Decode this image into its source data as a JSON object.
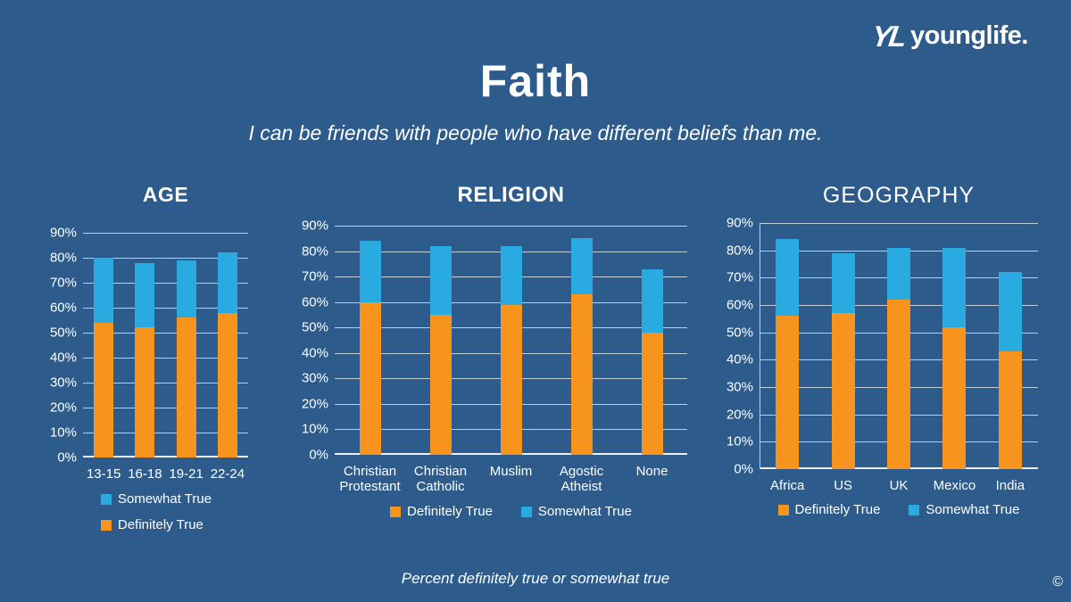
{
  "page": {
    "title": "Faith",
    "subtitle": "I can be friends with people who have different beliefs than me.",
    "footnote": "Percent definitely true or somewhat true",
    "copyright_symbol": "©"
  },
  "logo": {
    "mark": "YL",
    "text": "younglife."
  },
  "colors": {
    "background": "#2C5B8C",
    "definitely_true": "#F7941E",
    "somewhat_true": "#29ABE2",
    "gridline": "#C2CEDB",
    "text": "#FFFFFF"
  },
  "chart_data": [
    {
      "id": "age",
      "type": "bar",
      "stacked": true,
      "title": "AGE",
      "title_bold": true,
      "categories": [
        "13-15",
        "16-18",
        "19-21",
        "22-24"
      ],
      "series": [
        {
          "name": "Definitely True",
          "color_key": "definitely_true",
          "values": [
            54,
            52,
            56,
            58
          ]
        },
        {
          "name": "Somewhat True",
          "color_key": "somewhat_true",
          "values": [
            26,
            26,
            23,
            24
          ]
        }
      ],
      "totals": [
        80,
        78,
        79,
        82
      ],
      "ylim": [
        0,
        90
      ],
      "ticks": [
        "0%",
        "10%",
        "20%",
        "30%",
        "40%",
        "50%",
        "60%",
        "70%",
        "80%",
        "90%"
      ],
      "grid": true,
      "y_axis_line": false,
      "legend": [
        {
          "label": "Somewhat True",
          "color_key": "somewhat_true"
        },
        {
          "label": "Definitely True",
          "color_key": "definitely_true"
        }
      ],
      "legend_layout": "column",
      "legend_position": "bottom-left"
    },
    {
      "id": "religion",
      "type": "bar",
      "stacked": true,
      "title": "RELIGION",
      "title_bold": true,
      "categories": [
        "Christian Protestant",
        "Christian Catholic",
        "Muslim",
        "Agostic Atheist",
        "None"
      ],
      "series": [
        {
          "name": "Definitely True",
          "color_key": "definitely_true",
          "values": [
            60,
            55,
            59,
            63,
            48
          ]
        },
        {
          "name": "Somewhat True",
          "color_key": "somewhat_true",
          "values": [
            24,
            27,
            23,
            22,
            25
          ]
        }
      ],
      "totals": [
        84,
        82,
        82,
        85,
        73
      ],
      "ylim": [
        0,
        90
      ],
      "ticks": [
        "0%",
        "10%",
        "20%",
        "30%",
        "40%",
        "50%",
        "60%",
        "70%",
        "80%",
        "90%"
      ],
      "grid": true,
      "y_axis_line": false,
      "legend": [
        {
          "label": "Definitely True",
          "color_key": "definitely_true"
        },
        {
          "label": "Somewhat True",
          "color_key": "somewhat_true"
        }
      ],
      "legend_layout": "row",
      "legend_position": "bottom-center"
    },
    {
      "id": "geography",
      "type": "bar",
      "stacked": true,
      "title": "GEOGRAPHY",
      "title_bold": false,
      "categories": [
        "Africa",
        "US",
        "UK",
        "Mexico",
        "India"
      ],
      "series": [
        {
          "name": "Definitely True",
          "color_key": "definitely_true",
          "values": [
            56,
            57,
            62,
            52,
            43
          ]
        },
        {
          "name": "Somewhat True",
          "color_key": "somewhat_true",
          "values": [
            28,
            22,
            19,
            29,
            29
          ]
        }
      ],
      "totals": [
        84,
        79,
        81,
        81,
        72
      ],
      "ylim": [
        0,
        90
      ],
      "ticks": [
        "0%",
        "10%",
        "20%",
        "30%",
        "40%",
        "50%",
        "60%",
        "70%",
        "80%",
        "90%"
      ],
      "grid": true,
      "y_axis_line": true,
      "legend": [
        {
          "label": "Definitely True",
          "color_key": "definitely_true"
        },
        {
          "label": "Somewhat True",
          "color_key": "somewhat_true"
        }
      ],
      "legend_layout": "row",
      "legend_position": "bottom-center"
    }
  ]
}
